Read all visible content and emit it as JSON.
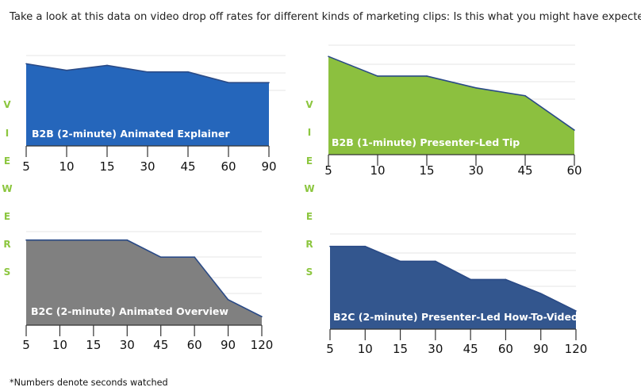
{
  "heading": "Take a look at this data on video drop off rates for different kinds of marketing clips: Is this what you might have expected?",
  "footnote": "*Numbers denote seconds watched",
  "side_label": [
    "V",
    "I",
    "E",
    "W",
    "E",
    "R",
    "S"
  ],
  "colors": {
    "side_label": "#8cc63f",
    "grid": "#e6e6e6",
    "axis": "#333333",
    "outline": "#2a4a86"
  },
  "chart_data": [
    {
      "type": "area",
      "title": "B2B (2-minute) Animated Explainer",
      "categories": [
        "5",
        "10",
        "15",
        "30",
        "45",
        "60",
        "90"
      ],
      "values": [
        100,
        92,
        98,
        90,
        90,
        77,
        77
      ],
      "ylim": [
        0,
        110
      ],
      "fill": "#2566bb",
      "grid": true
    },
    {
      "type": "area",
      "title": "B2B (1-minute) Presenter-Led Tip",
      "categories": [
        "5",
        "10",
        "15",
        "30",
        "45",
        "60"
      ],
      "values": [
        100,
        80,
        80,
        68,
        60,
        25
      ],
      "ylim": [
        0,
        105
      ],
      "fill": "#8cc03f",
      "grid": true
    },
    {
      "type": "area",
      "title": "B2C (2-minute) Animated Overview",
      "categories": [
        "5",
        "10",
        "15",
        "30",
        "45",
        "60",
        "90",
        "120"
      ],
      "values": [
        100,
        100,
        100,
        100,
        80,
        80,
        30,
        10
      ],
      "ylim": [
        0,
        110
      ],
      "fill": "#808080",
      "grid": true
    },
    {
      "type": "area",
      "title": "B2C (2-minute) Presenter-Led How-To-Video",
      "categories": [
        "5",
        "10",
        "15",
        "30",
        "45",
        "60",
        "90",
        "120"
      ],
      "values": [
        100,
        100,
        82,
        82,
        60,
        60,
        43,
        22
      ],
      "ylim": [
        0,
        115
      ],
      "fill": "#33568e",
      "grid": true
    }
  ]
}
